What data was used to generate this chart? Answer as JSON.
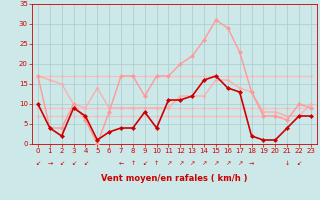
{
  "title": "Vent moyen/en rafales ( km/h )",
  "xlim": [
    -0.5,
    23.5
  ],
  "ylim": [
    0,
    35
  ],
  "yticks": [
    0,
    5,
    10,
    15,
    20,
    25,
    30,
    35
  ],
  "xticks": [
    0,
    1,
    2,
    3,
    4,
    5,
    6,
    7,
    8,
    9,
    10,
    11,
    12,
    13,
    14,
    15,
    16,
    17,
    18,
    19,
    20,
    21,
    22,
    23
  ],
  "bg_color": "#cce8e8",
  "grid_color": "#aacccc",
  "lines": [
    {
      "y": [
        17,
        17,
        17,
        17,
        17,
        17,
        17,
        17,
        17,
        17,
        17,
        17,
        17,
        17,
        17,
        17,
        17,
        17,
        17,
        17,
        17,
        17,
        17,
        17
      ],
      "color": "#ffbbbb",
      "lw": 0.8,
      "ms": 2.0,
      "zorder": 1
    },
    {
      "y": [
        9,
        9,
        9,
        9,
        9,
        9,
        9,
        9,
        9,
        9,
        9,
        9,
        9,
        9,
        9,
        9,
        9,
        9,
        9,
        9,
        9,
        9,
        9,
        9
      ],
      "color": "#ffbbbb",
      "lw": 0.8,
      "ms": 2.0,
      "zorder": 1
    },
    {
      "y": [
        7,
        7,
        7,
        7,
        7,
        7,
        7,
        7,
        7,
        7,
        7,
        7,
        7,
        7,
        7,
        7,
        7,
        7,
        7,
        7,
        7,
        7,
        7,
        7
      ],
      "color": "#ffbbbb",
      "lw": 0.8,
      "ms": 2.0,
      "zorder": 1
    },
    {
      "y": [
        17,
        16,
        15,
        10,
        9,
        14,
        9,
        9,
        9,
        9,
        9,
        9,
        12,
        12,
        12,
        16,
        16,
        14,
        13,
        8,
        8,
        7,
        7,
        10
      ],
      "color": "#ffaaaa",
      "lw": 0.9,
      "ms": 2.0,
      "zorder": 2
    },
    {
      "y": [
        17,
        4,
        4,
        10,
        6,
        0,
        8,
        17,
        17,
        12,
        17,
        17,
        20,
        22,
        26,
        31,
        29,
        23,
        13,
        7,
        7,
        6,
        10,
        9
      ],
      "color": "#ff9999",
      "lw": 1.0,
      "ms": 2.5,
      "zorder": 3
    },
    {
      "y": [
        10,
        4,
        2,
        9,
        7,
        1,
        3,
        4,
        4,
        8,
        4,
        11,
        11,
        12,
        16,
        17,
        14,
        13,
        2,
        1,
        1,
        4,
        7,
        7
      ],
      "color": "#cc0000",
      "lw": 1.2,
      "ms": 2.5,
      "zorder": 4
    }
  ],
  "wind_dirs": [
    "↙",
    "→",
    "↙",
    "↙",
    "↙",
    "",
    "",
    "←",
    "↑",
    "↙",
    "↑",
    "↗",
    "↗",
    "↗",
    "↗",
    "↗",
    "↗",
    "↗",
    "→",
    "",
    "",
    "↓",
    "↙",
    ""
  ],
  "ylabel_fontsize": 5,
  "xlabel_fontsize": 6,
  "tick_fontsize": 5,
  "tick_color": "#cc0000",
  "spine_color": "#cc0000"
}
